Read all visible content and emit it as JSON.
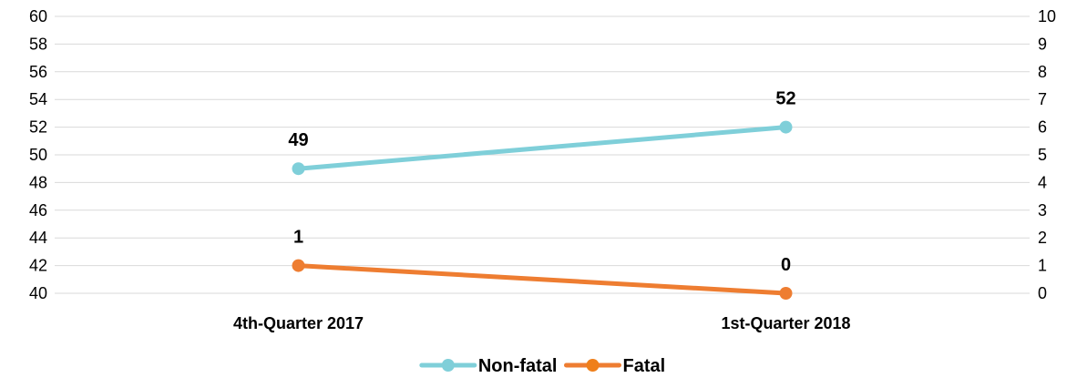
{
  "chart_data": {
    "type": "line",
    "categories": [
      "4th-Quarter 2017",
      "1st-Quarter 2018"
    ],
    "series": [
      {
        "name": "Non-fatal",
        "axis": "left",
        "values": [
          49,
          52
        ],
        "color": "#7fcfd9"
      },
      {
        "name": "Fatal",
        "axis": "right",
        "values": [
          1,
          0
        ],
        "color": "#ee7d31"
      }
    ],
    "y_left": {
      "min": 40,
      "max": 60,
      "step": 2
    },
    "y_right": {
      "min": 0,
      "max": 10,
      "step": 1
    },
    "grid": true,
    "legend_position": "bottom",
    "legend": [
      {
        "label": "Non-fatal",
        "color": "#7fcfd9",
        "line_color": "#7fcfd9"
      },
      {
        "label": "Fatal",
        "color": "#ef7f1a",
        "line_color": "#ee7d31"
      }
    ]
  }
}
